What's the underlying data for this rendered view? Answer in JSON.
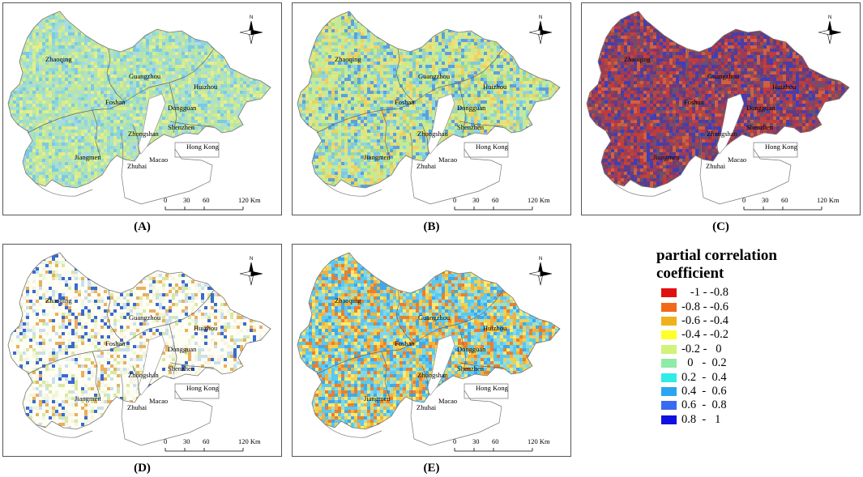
{
  "panels": [
    {
      "id": "A",
      "caption": "(A)",
      "palette": [
        "#b7e3b0",
        "#c3ea9a",
        "#9fe0c6",
        "#d8ec8a",
        "#8fd6dc",
        "#a9dce2",
        "#e3ef8c",
        "#7cc9e4"
      ],
      "density": 0.85
    },
    {
      "id": "B",
      "caption": "(B)",
      "palette": [
        "#c3ea9a",
        "#d8ec8a",
        "#a9d98a",
        "#8fd6dc",
        "#e8e07a",
        "#7cc9e4",
        "#f0d060",
        "#5aa0e0"
      ],
      "density": 0.85
    },
    {
      "id": "C",
      "caption": "(C)",
      "palette": [
        "#9a3c5a",
        "#7a3a6a",
        "#c33a3a",
        "#5a3c8a",
        "#3a3fc0",
        "#b5483c",
        "#6a5070",
        "#d06040"
      ],
      "density": 0.95
    },
    {
      "id": "D",
      "caption": "(D)",
      "palette": [
        "#fffef5",
        "#fafaf0",
        "#f6f3e0",
        "#eef6df",
        "#d8e8a0",
        "#e8b060",
        "#c8e0f0",
        "#3a6ad0"
      ],
      "density": 0.6
    },
    {
      "id": "E",
      "caption": "(E)",
      "palette": [
        "#5ac8f0",
        "#7ad8f0",
        "#40a8ec",
        "#f0b040",
        "#e88030",
        "#ffe870",
        "#a0e0c8",
        "#f0d050"
      ],
      "density": 0.9
    }
  ],
  "cities": {
    "zhaoqing": "Zhaoqing",
    "guangzhou": "Guangzhou",
    "huizhou": "Huizhou",
    "foshan": "Foshan",
    "dongguan": "Dongguan",
    "shenzhen": "Shenzhen",
    "zhongshan": "Zhongshan",
    "jiangmen": "Jiangmen",
    "zhuhai": "Zhuhai",
    "macao": "Macao",
    "hongkong": "Hong Kong"
  },
  "north_label": "N",
  "scale_labels": [
    "0",
    "30",
    "60",
    "120 Km"
  ],
  "legend": {
    "title_line1": "partial correlation",
    "title_line2": "coefficient",
    "items": [
      {
        "label": "   -1 - -0.8",
        "color": "#e01010"
      },
      {
        "label": "-0.8 - -0.6",
        "color": "#f06a1a"
      },
      {
        "label": "-0.6 - -0.4",
        "color": "#f0b21a"
      },
      {
        "label": "-0.4 - -0.2",
        "color": "#ffff2a"
      },
      {
        "label": "-0.2 -   0",
        "color": "#d2f27a"
      },
      {
        "label": "  0   -  0.2",
        "color": "#90eaa8"
      },
      {
        "label": "0.2  -  0.4",
        "color": "#30ece8"
      },
      {
        "label": "0.4  -  0.6",
        "color": "#2aa6f0"
      },
      {
        "label": "0.6  -  0.8",
        "color": "#3a6af0"
      },
      {
        "label": "0.8  -   1",
        "color": "#1010e0"
      }
    ]
  }
}
